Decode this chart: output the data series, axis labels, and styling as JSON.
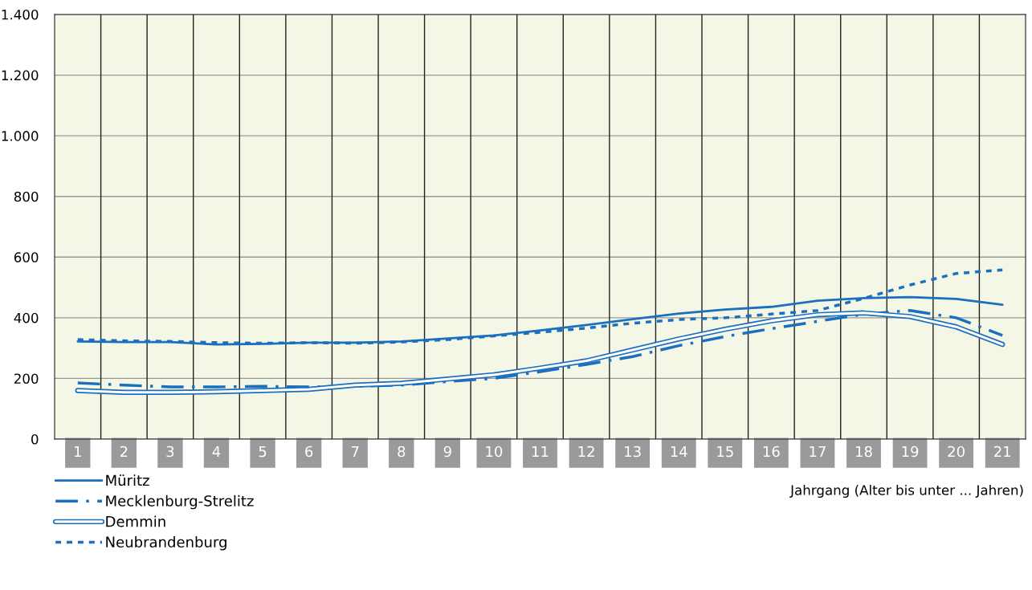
{
  "chart_data": {
    "type": "line",
    "xlabel": "Jahrgang (Alter bis unter ... Jahren)",
    "categories": [
      "1",
      "2",
      "3",
      "4",
      "5",
      "6",
      "7",
      "8",
      "9",
      "10",
      "11",
      "12",
      "13",
      "14",
      "15",
      "16",
      "17",
      "18",
      "19",
      "20",
      "21"
    ],
    "series": [
      {
        "name": "Müritz",
        "color": "#1a6fbf",
        "line_style": "solid",
        "values": [
          322,
          320,
          320,
          312,
          314,
          318,
          318,
          322,
          332,
          342,
          358,
          376,
          395,
          414,
          427,
          436,
          456,
          465,
          468,
          462,
          443
        ]
      },
      {
        "name": "Mecklenburg-Strelitz",
        "color": "#1a6fbf",
        "line_style": "dashed",
        "values": [
          185,
          178,
          172,
          172,
          174,
          172,
          174,
          178,
          190,
          200,
          222,
          246,
          272,
          308,
          338,
          364,
          388,
          412,
          424,
          400,
          342
        ]
      },
      {
        "name": "Demmin",
        "color": "#1a6fbf",
        "values": [
          160,
          154,
          154,
          156,
          160,
          164,
          178,
          184,
          198,
          212,
          234,
          258,
          294,
          330,
          362,
          390,
          410,
          416,
          404,
          370,
          312
        ]
      },
      {
        "name": "Neubrandenburg",
        "color": "#1a6fbf",
        "line_style": "dotted",
        "values": [
          328,
          324,
          322,
          318,
          316,
          318,
          316,
          320,
          328,
          340,
          352,
          366,
          382,
          394,
          400,
          412,
          424,
          464,
          508,
          546,
          558
        ]
      }
    ],
    "ylim": [
      0,
      1400
    ],
    "yticks": [
      0,
      200,
      400,
      600,
      800,
      {
        "value": 1000,
        "label": "1.000"
      },
      {
        "value": 1200,
        "label": "1.200"
      },
      {
        "value": 1400,
        "label": "1.400"
      }
    ],
    "grid": true,
    "legend": "bottom left",
    "marker": "none"
  }
}
